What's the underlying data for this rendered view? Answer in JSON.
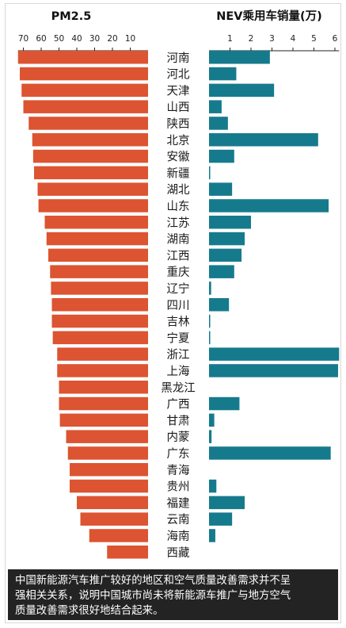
{
  "chart_data": [
    {
      "type": "bar",
      "title": "PM2.5",
      "orientation": "horizontal",
      "direction": "right-to-left",
      "xlim": [
        0,
        73
      ],
      "ticks": [
        70,
        60,
        50,
        40,
        30,
        20,
        10
      ],
      "bar_color": "#dc5431",
      "categories": [
        "河南",
        "河北",
        "天津",
        "山西",
        "陕西",
        "北京",
        "安徽",
        "新疆",
        "湖北",
        "山东",
        "江苏",
        "湖南",
        "江西",
        "重庆",
        "辽宁",
        "四川",
        "吉林",
        "宁夏",
        "浙江",
        "上海",
        "黑龙江",
        "广西",
        "甘肃",
        "内蒙",
        "广东",
        "青海",
        "贵州",
        "福建",
        "云南",
        "海南",
        "西藏"
      ],
      "values": [
        73,
        72,
        71,
        70,
        67,
        65,
        64.5,
        64,
        62,
        61.5,
        58,
        57,
        56,
        55,
        54.5,
        54,
        54,
        53.5,
        51,
        51,
        50,
        50,
        49.5,
        46,
        45,
        44,
        44,
        40,
        38,
        33,
        23
      ]
    },
    {
      "type": "bar",
      "title": "NEV乘用车销量(万)",
      "orientation": "horizontal",
      "direction": "left-to-right",
      "xlim": [
        0,
        6.2
      ],
      "ticks": [
        1,
        2,
        3,
        4,
        5,
        6
      ],
      "bar_color": "#167a8d",
      "categories": [
        "河南",
        "河北",
        "天津",
        "山西",
        "陕西",
        "北京",
        "安徽",
        "新疆",
        "湖北",
        "山东",
        "江苏",
        "湖南",
        "江西",
        "重庆",
        "辽宁",
        "四川",
        "吉林",
        "宁夏",
        "浙江",
        "上海",
        "黑龙江",
        "广西",
        "甘肃",
        "内蒙",
        "广东",
        "青海",
        "贵州",
        "福建",
        "云南",
        "海南",
        "西藏"
      ],
      "values": [
        2.9,
        1.3,
        3.1,
        0.6,
        0.9,
        5.2,
        1.2,
        0.05,
        1.1,
        5.7,
        2.0,
        1.7,
        1.55,
        1.2,
        0.1,
        0.95,
        0.05,
        0.05,
        6.2,
        6.15,
        0,
        1.45,
        0.25,
        0.12,
        5.8,
        0,
        0.35,
        1.7,
        1.1,
        0.3,
        0
      ]
    }
  ],
  "caption": {
    "line1": "中国新能源汽车推广较好的地区和空气质量改善需求并不呈",
    "line2": "强相关关系，说明中国城市尚未将新能源车推广与地方空气",
    "line3": "质量改善需求很好地结合起来。"
  }
}
